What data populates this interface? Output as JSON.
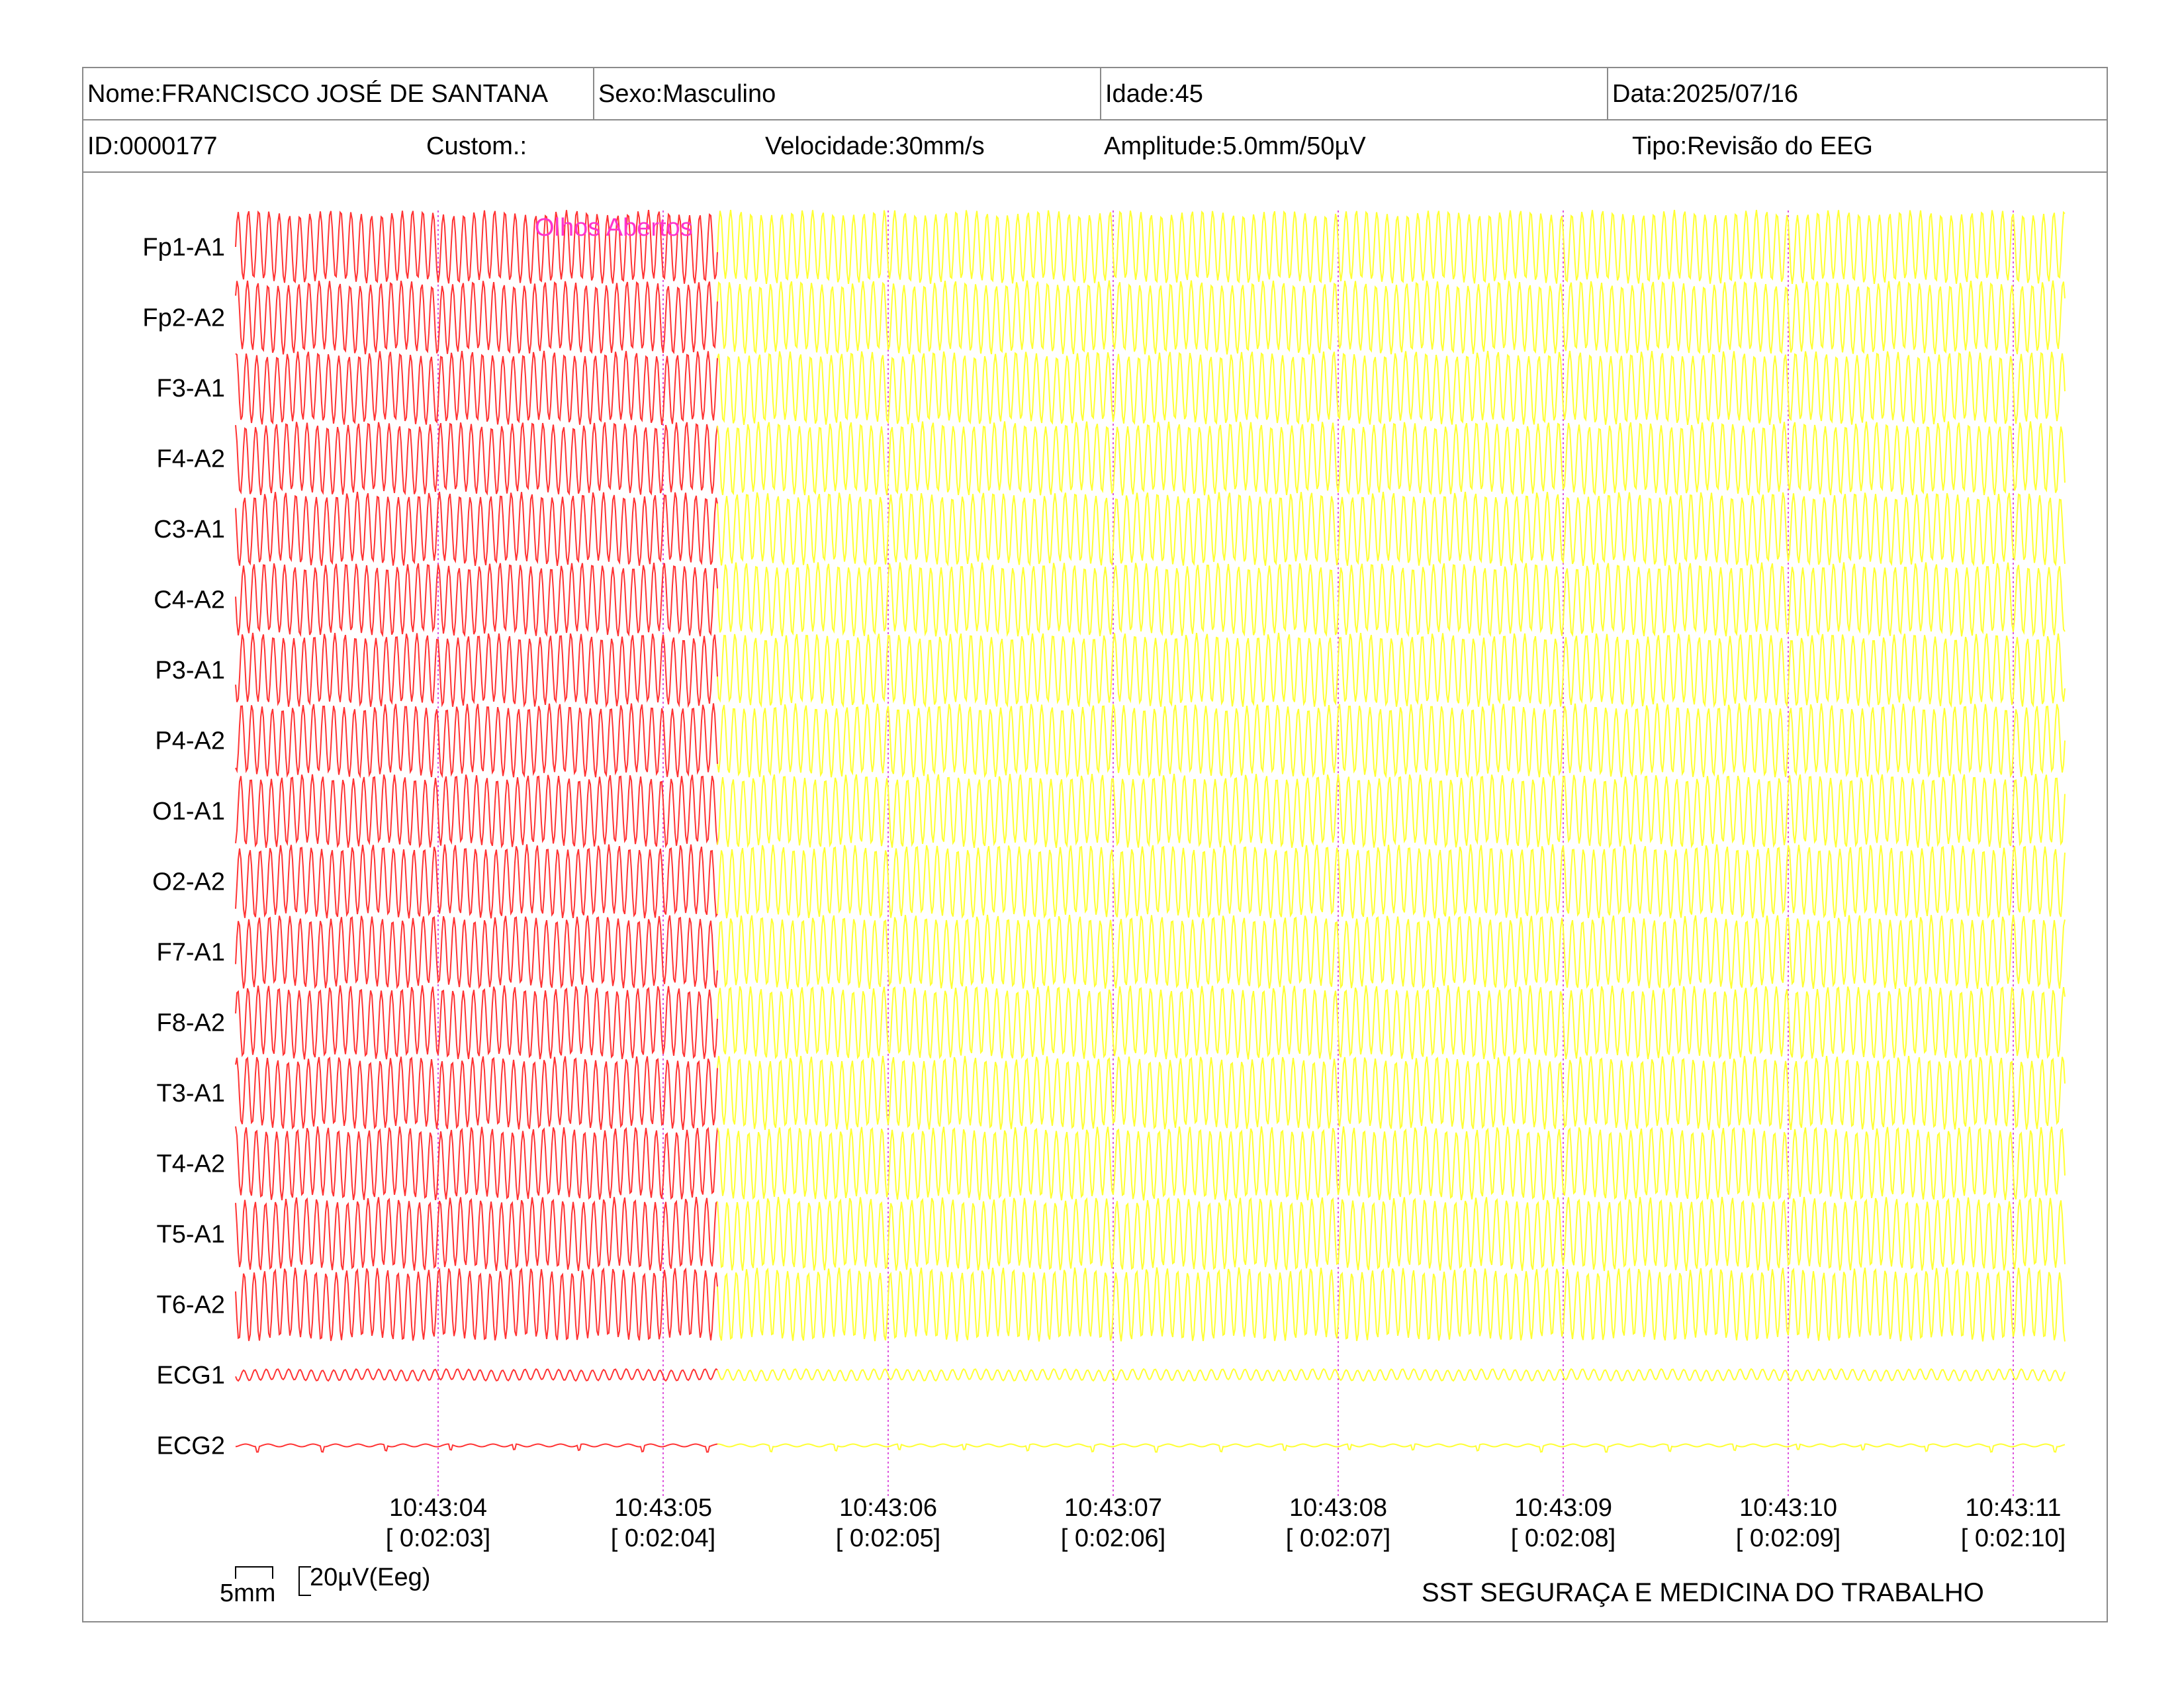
{
  "header": {
    "name": "Nome:FRANCISCO JOSÉ DE SANTANA",
    "sex": "Sexo:Masculino",
    "age": "Idade:45",
    "date": "Data:2025/07/16",
    "id": "ID:0000177",
    "custom": "Custom.:",
    "speed": "Velocidade:30mm/s",
    "amplitude": "Amplitude:5.0mm/50µV",
    "type": "Tipo:Revisão do EEG"
  },
  "chart_data": {
    "type": "line",
    "title": "",
    "channels": [
      "Fp1-A1",
      "Fp2-A2",
      "F3-A1",
      "F4-A2",
      "C3-A1",
      "C4-A2",
      "P3-A1",
      "P4-A2",
      "O1-A1",
      "O2-A2",
      "F7-A1",
      "F8-A2",
      "T3-A1",
      "T4-A2",
      "T5-A1",
      "T6-A2",
      "ECG1",
      "ECG2"
    ],
    "time_labels": [
      "10:43:04",
      "10:43:05",
      "10:43:06",
      "10:43:07",
      "10:43:08",
      "10:43:09",
      "10:43:10",
      "10:43:11"
    ],
    "elapsed_labels": [
      "[ 0:02:03]",
      "[ 0:02:04]",
      "[ 0:02:05]",
      "[ 0:02:06]",
      "[ 0:02:07]",
      "[ 0:02:08]",
      "[ 0:02:09]",
      "[ 0:02:10]"
    ],
    "annotation": "Olhos Abertos",
    "colors": {
      "reviewed": "#ff3333",
      "pending": "#ffff33",
      "annotation": "#ff33cc",
      "markers": "#dd55dd",
      "grid": "#8a8a8a"
    }
  },
  "scale": {
    "time": "5mm",
    "amplitude": "20µV(Eeg)"
  },
  "footer": "SST SEGURAÇA E MEDICINA DO TRABALHO"
}
